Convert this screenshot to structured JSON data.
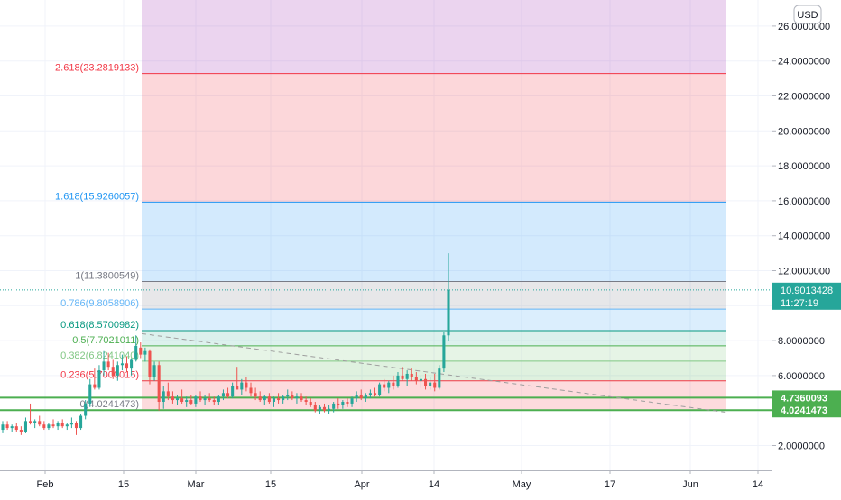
{
  "chart_data": {
    "type": "candlestick",
    "currency": "USD",
    "x_ticks": [
      "Feb",
      "15",
      "Mar",
      "15",
      "Apr",
      "14",
      "May",
      "17",
      "Jun",
      "14"
    ],
    "y_ticks": [
      "2.0000000",
      "4.0000000",
      "6.0000000",
      "8.0000000",
      "10.0000000",
      "12.0000000",
      "14.0000000",
      "16.0000000",
      "18.0000000",
      "20.0000000",
      "22.0000000",
      "24.0000000",
      "26.0000000"
    ],
    "ylim": [
      0,
      27
    ],
    "fib_levels": [
      {
        "label": "0(4.0241473)",
        "level": 0,
        "value": 4.0241473,
        "color": "#787b86"
      },
      {
        "label": "0.236(5.7000015)",
        "level": 0.236,
        "value": 5.7000015,
        "color": "#f23645"
      },
      {
        "label": "0.382(6.8241040)",
        "level": 0.382,
        "value": 6.824104,
        "color": "#81c784"
      },
      {
        "label": "0.5(7.7021011)",
        "level": 0.5,
        "value": 7.7021011,
        "color": "#4caf50"
      },
      {
        "label": "0.618(8.5700982)",
        "level": 0.618,
        "value": 8.5700982,
        "color": "#089981"
      },
      {
        "label": "0.786(9.8058906)",
        "level": 0.786,
        "value": 9.8058906,
        "color": "#64b5f6"
      },
      {
        "label": "1(11.3800549)",
        "level": 1,
        "value": 11.3800549,
        "color": "#787b86"
      },
      {
        "label": "1.618(15.9260057)",
        "level": 1.618,
        "value": 15.9260057,
        "color": "#2196f3"
      },
      {
        "label": "2.618(23.2819133)",
        "level": 2.618,
        "value": 23.2819133,
        "color": "#f23645"
      }
    ],
    "horizontal_lines": [
      {
        "label": "4.7360093",
        "value": 4.7360093,
        "color": "#4caf50"
      },
      {
        "label": "4.0241473",
        "value": 4.0241473,
        "color": "#4caf50"
      }
    ],
    "last_price": {
      "label": "10.9013428",
      "value": 10.9013428,
      "countdown": "11:27:19",
      "color": "#26a69a"
    },
    "trendline": {
      "start": {
        "date": "Feb 17",
        "value": 8.4
      },
      "end": {
        "date": "Jun 7",
        "value": 3.9
      }
    },
    "ohlc": [
      [
        2.9,
        3.4,
        2.7,
        3.2
      ],
      [
        3.2,
        3.4,
        2.9,
        3.0
      ],
      [
        3.0,
        3.2,
        2.8,
        3.1
      ],
      [
        3.1,
        3.3,
        2.8,
        2.9
      ],
      [
        2.9,
        3.1,
        2.6,
        2.8
      ],
      [
        2.8,
        3.6,
        2.7,
        3.4
      ],
      [
        3.4,
        4.4,
        3.2,
        3.3
      ],
      [
        3.3,
        3.5,
        3.0,
        3.4
      ],
      [
        3.4,
        3.7,
        3.1,
        3.2
      ],
      [
        3.2,
        3.4,
        2.9,
        3.0
      ],
      [
        3.0,
        3.3,
        2.9,
        3.2
      ],
      [
        3.2,
        3.5,
        3.0,
        3.1
      ],
      [
        3.1,
        3.4,
        2.9,
        3.3
      ],
      [
        3.3,
        3.5,
        3.0,
        3.1
      ],
      [
        3.1,
        3.3,
        2.9,
        3.2
      ],
      [
        3.2,
        3.6,
        3.0,
        3.3
      ],
      [
        3.3,
        3.4,
        2.6,
        3.0
      ],
      [
        3.0,
        3.8,
        2.9,
        3.7
      ],
      [
        3.7,
        4.6,
        3.5,
        4.4
      ],
      [
        4.4,
        5.8,
        4.2,
        5.5
      ],
      [
        5.5,
        6.4,
        5.2,
        5.3
      ],
      [
        5.3,
        6.6,
        5.2,
        6.3
      ],
      [
        6.3,
        7.4,
        6.0,
        6.8
      ],
      [
        6.8,
        7.3,
        6.3,
        6.5
      ],
      [
        6.5,
        6.9,
        5.8,
        6.0
      ],
      [
        6.0,
        6.8,
        5.7,
        6.6
      ],
      [
        6.6,
        7.2,
        6.3,
        6.7
      ],
      [
        6.7,
        7.1,
        6.2,
        6.4
      ],
      [
        6.4,
        7.0,
        6.0,
        6.9
      ],
      [
        6.9,
        8.3,
        6.8,
        7.7
      ],
      [
        7.6,
        7.9,
        7.0,
        7.2
      ],
      [
        7.2,
        7.6,
        6.8,
        7.4
      ],
      [
        7.4,
        7.5,
        5.5,
        5.9
      ],
      [
        5.9,
        6.8,
        5.7,
        6.6
      ],
      [
        6.6,
        6.8,
        4.0,
        4.5
      ],
      [
        4.5,
        5.4,
        4.1,
        5.1
      ],
      [
        5.1,
        5.6,
        4.6,
        4.8
      ],
      [
        4.8,
        5.1,
        4.4,
        4.6
      ],
      [
        4.6,
        4.9,
        4.3,
        4.7
      ],
      [
        4.7,
        5.2,
        4.4,
        4.5
      ],
      [
        4.5,
        4.8,
        4.2,
        4.6
      ],
      [
        4.6,
        4.9,
        4.3,
        4.4
      ],
      [
        4.4,
        4.9,
        4.2,
        4.8
      ],
      [
        4.8,
        5.1,
        4.5,
        4.6
      ],
      [
        4.6,
        4.9,
        4.3,
        4.7
      ],
      [
        4.7,
        5.0,
        4.5,
        4.6
      ],
      [
        4.6,
        4.8,
        4.3,
        4.5
      ],
      [
        4.5,
        4.9,
        4.3,
        4.8
      ],
      [
        4.8,
        5.2,
        4.6,
        5.0
      ],
      [
        5.0,
        5.3,
        4.7,
        4.8
      ],
      [
        4.8,
        5.6,
        4.7,
        5.4
      ],
      [
        5.4,
        6.5,
        5.2,
        5.2
      ],
      [
        5.2,
        5.8,
        4.9,
        5.6
      ],
      [
        5.6,
        5.9,
        5.1,
        5.3
      ],
      [
        5.3,
        5.6,
        4.8,
        5.0
      ],
      [
        5.0,
        5.3,
        4.6,
        4.8
      ],
      [
        4.8,
        5.1,
        4.5,
        4.6
      ],
      [
        4.6,
        4.9,
        4.3,
        4.8
      ],
      [
        4.8,
        5.0,
        4.4,
        4.5
      ],
      [
        4.5,
        4.8,
        4.2,
        4.7
      ],
      [
        4.7,
        5.0,
        4.4,
        4.6
      ],
      [
        4.6,
        4.9,
        4.4,
        4.8
      ],
      [
        4.8,
        5.2,
        4.6,
        4.9
      ],
      [
        4.9,
        5.1,
        4.6,
        4.7
      ],
      [
        4.7,
        5.0,
        4.4,
        4.8
      ],
      [
        4.8,
        5.0,
        4.5,
        4.6
      ],
      [
        4.6,
        4.8,
        4.3,
        4.5
      ],
      [
        4.5,
        4.7,
        4.2,
        4.3
      ],
      [
        4.3,
        4.5,
        3.9,
        4.0
      ],
      [
        4.0,
        4.3,
        3.8,
        4.2
      ],
      [
        4.2,
        4.4,
        3.9,
        4.0
      ],
      [
        4.0,
        4.3,
        3.8,
        4.1
      ],
      [
        4.1,
        4.5,
        3.9,
        4.4
      ],
      [
        4.4,
        4.7,
        4.1,
        4.3
      ],
      [
        4.3,
        4.6,
        4.1,
        4.5
      ],
      [
        4.5,
        4.7,
        4.2,
        4.4
      ],
      [
        4.4,
        4.8,
        4.2,
        4.7
      ],
      [
        4.7,
        5.1,
        4.5,
        4.9
      ],
      [
        4.9,
        5.2,
        4.6,
        4.7
      ],
      [
        4.7,
        5.0,
        4.5,
        4.9
      ],
      [
        4.9,
        5.2,
        4.7,
        5.0
      ],
      [
        5.0,
        5.3,
        4.8,
        4.9
      ],
      [
        4.9,
        5.6,
        4.8,
        5.5
      ],
      [
        5.5,
        5.8,
        5.1,
        5.3
      ],
      [
        5.3,
        5.7,
        5.0,
        5.6
      ],
      [
        5.6,
        6.0,
        5.2,
        5.4
      ],
      [
        5.4,
        6.2,
        5.3,
        6.0
      ],
      [
        6.0,
        6.5,
        5.7,
        5.8
      ],
      [
        5.8,
        6.3,
        5.4,
        6.1
      ],
      [
        6.1,
        6.4,
        5.7,
        5.9
      ],
      [
        5.9,
        6.2,
        5.5,
        5.7
      ],
      [
        5.7,
        6.0,
        5.3,
        5.8
      ],
      [
        5.8,
        6.1,
        5.2,
        5.4
      ],
      [
        5.4,
        5.9,
        5.2,
        5.6
      ],
      [
        5.6,
        6.1,
        5.1,
        5.3
      ],
      [
        5.3,
        6.6,
        5.2,
        6.4
      ],
      [
        6.4,
        8.5,
        6.2,
        8.3
      ],
      [
        8.3,
        13.0,
        8.0,
        10.9
      ]
    ]
  }
}
